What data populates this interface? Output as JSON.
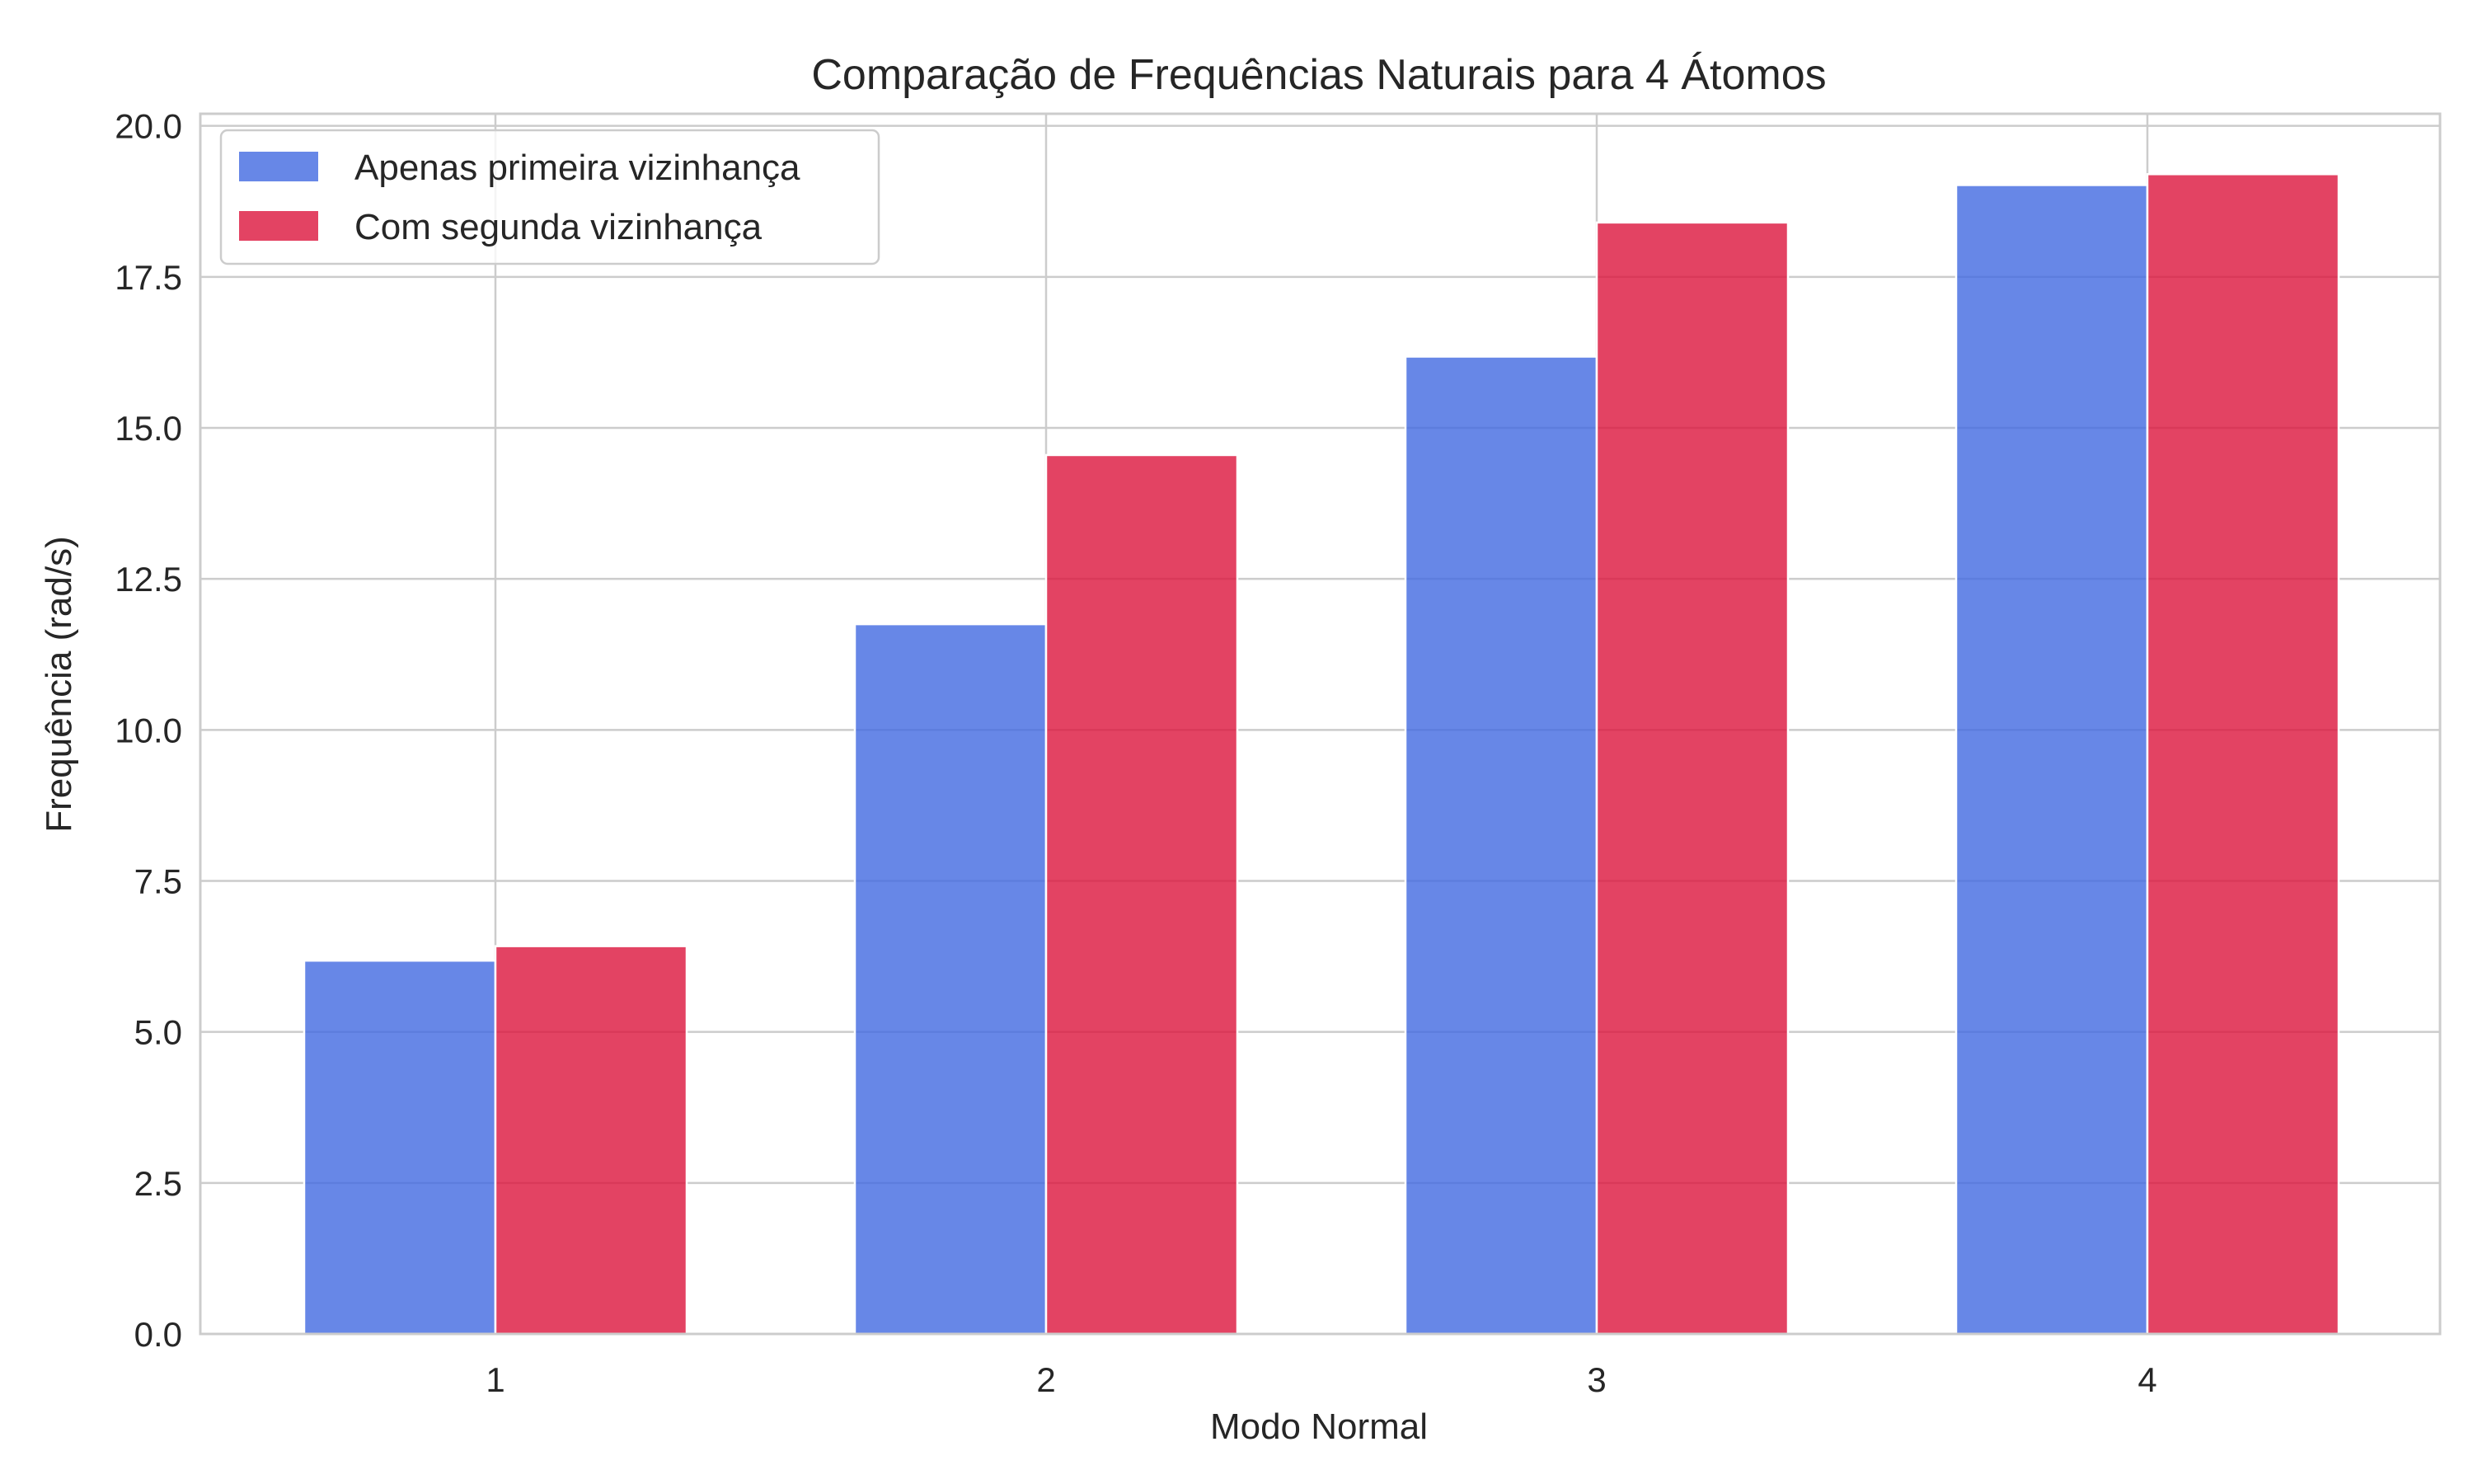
{
  "colors": {
    "series_1": "#4169e1",
    "series_2": "#dc143c",
    "grid": "#cccccc",
    "axes": "#cccccc",
    "text": "#262626",
    "background": "#ffffff"
  },
  "chart_data": {
    "type": "bar",
    "title": "Comparação de Frequências Naturais para 4 Átomos",
    "xlabel": "Modo Normal",
    "ylabel": "Frequência (rad/s)",
    "categories": [
      "1",
      "2",
      "3",
      "4"
    ],
    "series": [
      {
        "name": "Apenas primeira vizinhança",
        "values": [
          6.18,
          11.75,
          16.18,
          19.02
        ]
      },
      {
        "name": "Com segunda vizinhança",
        "values": [
          6.42,
          14.55,
          18.4,
          19.2
        ]
      }
    ],
    "ylim": [
      0,
      20.2
    ],
    "yticks": [
      "0.0",
      "2.5",
      "5.0",
      "7.5",
      "10.0",
      "12.5",
      "15.0",
      "17.5",
      "20.0"
    ],
    "grid": true,
    "legend_position": "top-left"
  }
}
